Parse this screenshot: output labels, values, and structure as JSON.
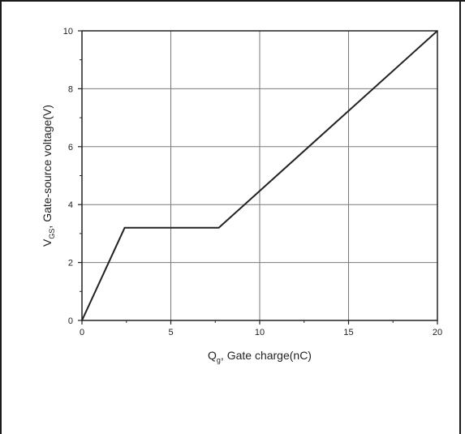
{
  "chart_data": {
    "type": "line",
    "title": "",
    "xlabel": {
      "main": "Q",
      "sub": "g",
      "rest": ", Gate charge(nC)"
    },
    "ylabel": {
      "main": "V",
      "sub": "GS",
      "rest": ", Gate-source voltage(V)"
    },
    "xlim": [
      0,
      20
    ],
    "ylim": [
      0,
      10
    ],
    "x_ticks": [
      0,
      5,
      10,
      15,
      20
    ],
    "y_ticks": [
      0,
      2,
      4,
      6,
      8,
      10
    ],
    "x_minor_step": 2.5,
    "y_minor_step": 1,
    "grid": true,
    "series": [
      {
        "points": [
          [
            0,
            0
          ],
          [
            2.4,
            3.2
          ],
          [
            7.7,
            3.2
          ],
          [
            20,
            10
          ]
        ]
      }
    ],
    "colors": {
      "line": "#222222",
      "grid": "#7a7a7a",
      "axis": "#222222"
    }
  }
}
